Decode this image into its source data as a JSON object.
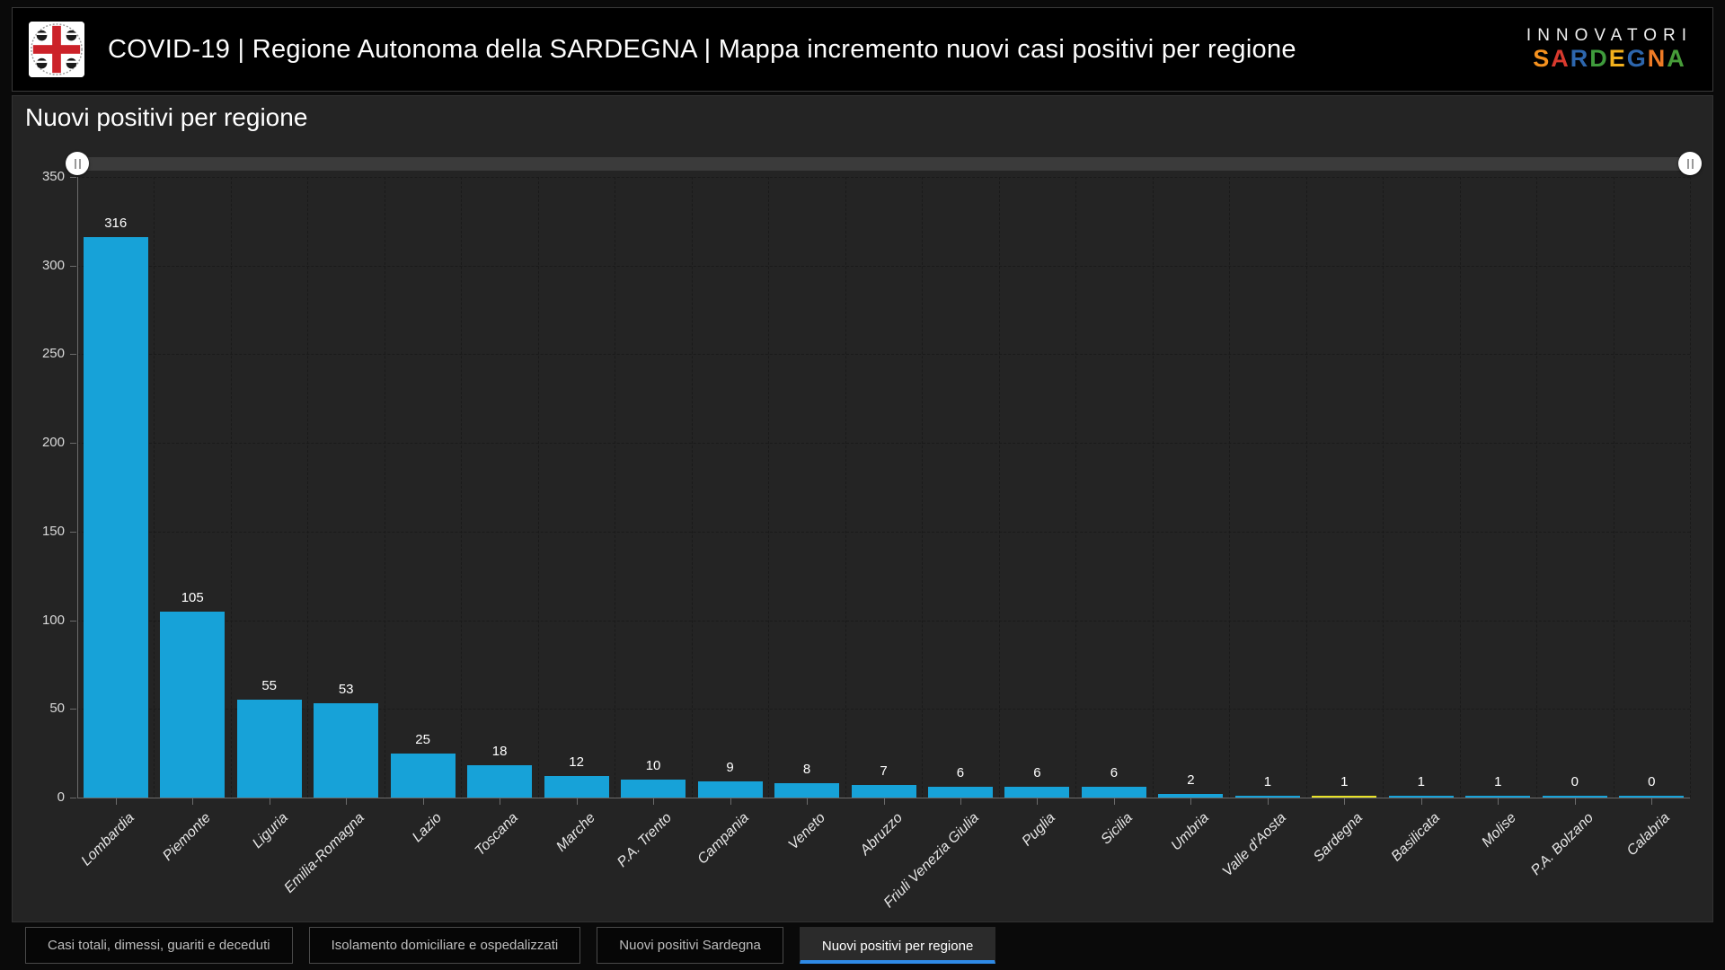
{
  "header": {
    "title": "COVID-19 | Regione Autonoma della SARDEGNA | Mappa incremento nuovi casi positivi per regione",
    "crest_name": "stemma-regione-sardegna-quattro-mori",
    "brand": {
      "line1": "INNOVATORI",
      "line2_letters": [
        {
          "ch": "S",
          "color": "#f5911e"
        },
        {
          "ch": "A",
          "color": "#d93a2e"
        },
        {
          "ch": "R",
          "color": "#2d66ad"
        },
        {
          "ch": "D",
          "color": "#3f9b3c"
        },
        {
          "ch": "E",
          "color": "#f2b01c"
        },
        {
          "ch": "G",
          "color": "#2d66ad"
        },
        {
          "ch": "N",
          "color": "#ef7b25"
        },
        {
          "ch": "A",
          "color": "#479c39"
        }
      ]
    }
  },
  "chart": {
    "title": "Nuovi positivi per regione"
  },
  "chart_data": {
    "type": "bar",
    "title": "Nuovi positivi per regione",
    "categories": [
      "Lombardia",
      "Piemonte",
      "Liguria",
      "Emilia-Romagna",
      "Lazio",
      "Toscana",
      "Marche",
      "P.A. Trento",
      "Campania",
      "Veneto",
      "Abruzzo",
      "Friuli Venezia Giulia",
      "Puglia",
      "Sicilia",
      "Umbria",
      "Valle d'Aosta",
      "Sardegna",
      "Basilicata",
      "Molise",
      "P.A. Bolzano",
      "Calabria"
    ],
    "values": [
      316,
      105,
      55,
      53,
      25,
      18,
      12,
      10,
      9,
      8,
      7,
      6,
      6,
      6,
      2,
      1,
      1,
      1,
      1,
      0,
      0
    ],
    "xlabel": "",
    "ylabel": "",
    "ylim": [
      0,
      350
    ],
    "ytick_step": 50,
    "grid": "dashed",
    "legend": "none",
    "value_labels": true,
    "bar_color": "#17a2d8",
    "highlight": {
      "category": "Sardegna",
      "color": "#e7e228"
    }
  },
  "slider": {
    "left_handle": "range-start",
    "right_handle": "range-end"
  },
  "tabs": [
    {
      "label": "Casi totali, dimessi, guariti e deceduti",
      "active": false
    },
    {
      "label": "Isolamento domiciliare e ospedalizzati",
      "active": false
    },
    {
      "label": "Nuovi positivi Sardegna",
      "active": false
    },
    {
      "label": "Nuovi positivi per regione",
      "active": true
    }
  ],
  "colors": {
    "page_bg": "#0a0a0a",
    "header_bg": "#000000",
    "panel_bg": "#242424",
    "bar_blue": "#17a2d8",
    "bar_yellow": "#e7e228",
    "tab_active_underline": "#2e8ae6"
  }
}
